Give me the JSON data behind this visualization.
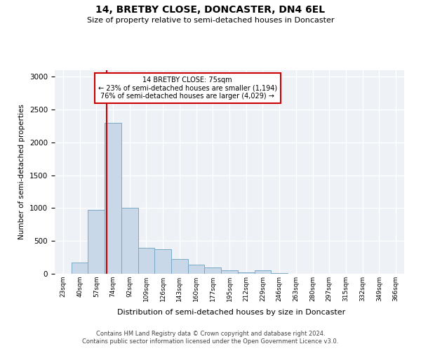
{
  "title": "14, BRETBY CLOSE, DONCASTER, DN4 6EL",
  "subtitle": "Size of property relative to semi-detached houses in Doncaster",
  "xlabel": "Distribution of semi-detached houses by size in Doncaster",
  "ylabel": "Number of semi-detached properties",
  "footer_line1": "Contains HM Land Registry data © Crown copyright and database right 2024.",
  "footer_line2": "Contains public sector information licensed under the Open Government Licence v3.0.",
  "bin_labels": [
    "23sqm",
    "40sqm",
    "57sqm",
    "74sqm",
    "92sqm",
    "109sqm",
    "126sqm",
    "143sqm",
    "160sqm",
    "177sqm",
    "195sqm",
    "212sqm",
    "229sqm",
    "246sqm",
    "263sqm",
    "280sqm",
    "297sqm",
    "315sqm",
    "332sqm",
    "349sqm",
    "366sqm"
  ],
  "bar_values": [
    0,
    170,
    975,
    2300,
    1000,
    400,
    375,
    225,
    140,
    100,
    50,
    20,
    50,
    10,
    0,
    0,
    0,
    0,
    0,
    0,
    0
  ],
  "bar_color": "#c8d8e8",
  "bar_edge_color": "#7aaac8",
  "annotation_line1": "14 BRETBY CLOSE: 75sqm",
  "annotation_line2": "← 23% of semi-detached houses are smaller (1,194)",
  "annotation_line3": "76% of semi-detached houses are larger (4,029) →",
  "vline_color": "#cc0000",
  "vline_x": 3.12,
  "ylim": [
    0,
    3100
  ],
  "yticks": [
    0,
    500,
    1000,
    1500,
    2000,
    2500,
    3000
  ],
  "bg_color": "#eef2f7"
}
